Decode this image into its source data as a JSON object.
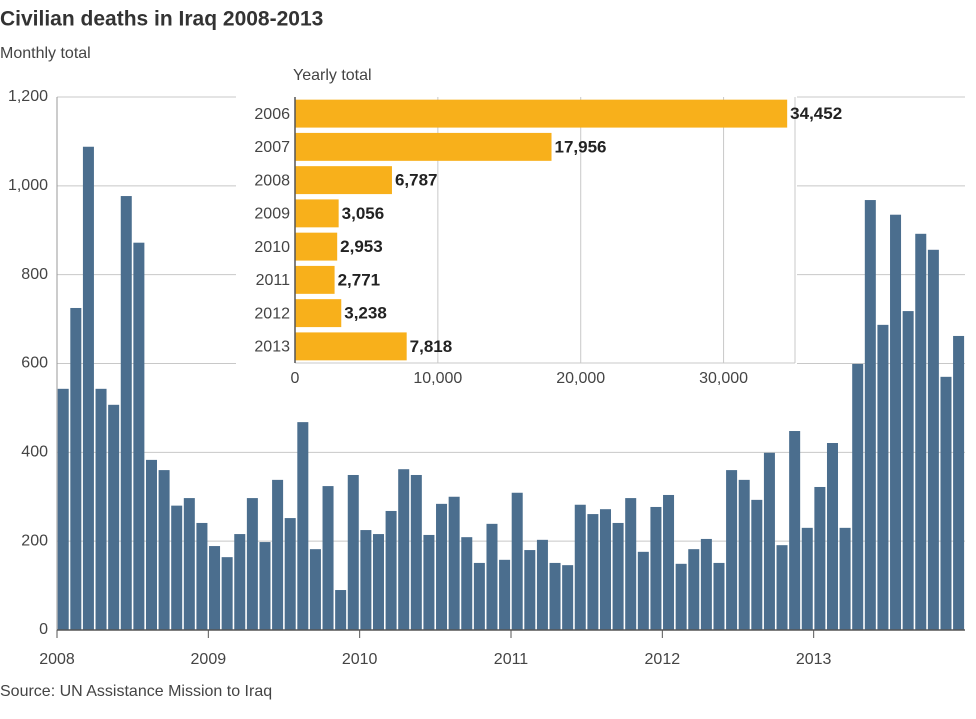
{
  "chart_data": [
    {
      "type": "bar",
      "title": "Civilian deaths in Iraq 2008-2013",
      "subtitle": "Monthly total",
      "source": "Source: UN Assistance Mission to Iraq",
      "color": "#4b6e8e",
      "grid": true,
      "categories": [
        "2008",
        null,
        null,
        null,
        null,
        null,
        null,
        null,
        null,
        null,
        null,
        null,
        "2009",
        null,
        null,
        null,
        null,
        null,
        null,
        null,
        null,
        null,
        null,
        null,
        "2010",
        null,
        null,
        null,
        null,
        null,
        null,
        null,
        null,
        null,
        null,
        null,
        "2011",
        null,
        null,
        null,
        null,
        null,
        null,
        null,
        null,
        null,
        null,
        null,
        "2012",
        null,
        null,
        null,
        null,
        null,
        null,
        null,
        null,
        null,
        null,
        null,
        "2013",
        null,
        null,
        null,
        null,
        null,
        null,
        null,
        null,
        null,
        null,
        null
      ],
      "values": [
        543,
        725,
        1088,
        543,
        507,
        977,
        872,
        383,
        360,
        280,
        297,
        241,
        189,
        164,
        216,
        297,
        198,
        338,
        252,
        468,
        182,
        324,
        90,
        349,
        225,
        216,
        268,
        362,
        349,
        214,
        284,
        300,
        209,
        151,
        239,
        158,
        309,
        180,
        203,
        151,
        146,
        282,
        261,
        272,
        241,
        297,
        176,
        277,
        304,
        149,
        182,
        205,
        151,
        360,
        338,
        293,
        399,
        191,
        448,
        230,
        322,
        421,
        230,
        599,
        968,
        687,
        935,
        718,
        892,
        856,
        570,
        662
      ],
      "ylim": [
        0,
        1200
      ],
      "yticks": [
        0,
        200,
        400,
        600,
        800,
        {
          "value": 1000,
          "label": "1,000"
        },
        {
          "value": 1200,
          "label": "1,200"
        }
      ]
    },
    {
      "type": "hbar",
      "title": "Yearly total",
      "color": "#f8b01b",
      "grid": true,
      "categories": [
        "2006",
        "2007",
        "2008",
        "2009",
        "2010",
        "2011",
        "2012",
        "2013"
      ],
      "values": [
        34452,
        17956,
        6787,
        3056,
        2953,
        2771,
        3238,
        7818
      ],
      "value_labels": [
        "34,452",
        "17,956",
        "6,787",
        "3,056",
        "2,953",
        "2,771",
        "3,238",
        "7,818"
      ],
      "xlim": [
        0,
        35000
      ],
      "xticks": [
        0,
        {
          "value": 10000,
          "label": "10,000"
        },
        {
          "value": 20000,
          "label": "20,000"
        },
        {
          "value": 30000,
          "label": "30,000"
        }
      ]
    }
  ]
}
